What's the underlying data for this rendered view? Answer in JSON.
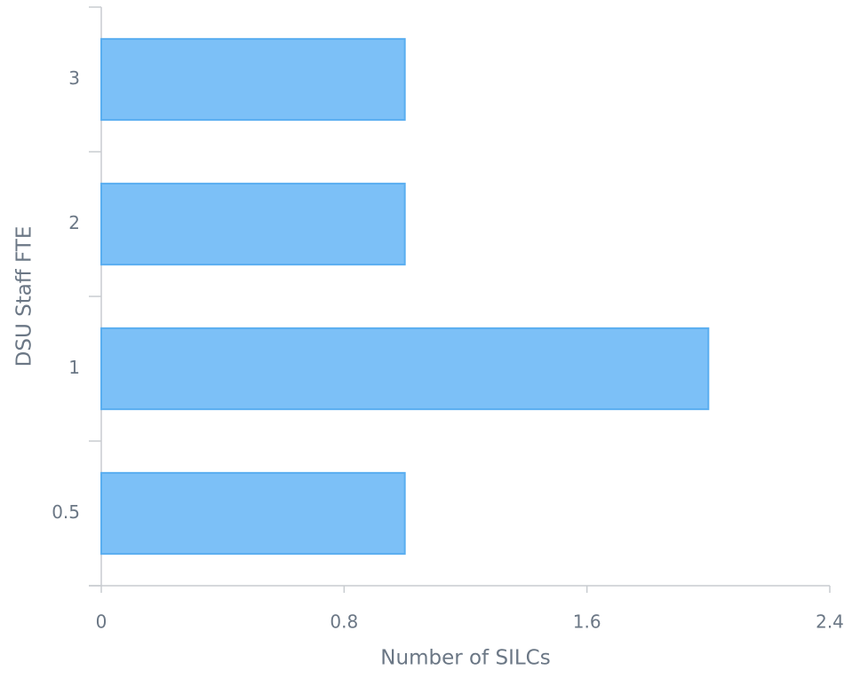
{
  "chart_data": {
    "type": "hbar",
    "xlabel": "Number of SILCs",
    "ylabel": "DSU Staff FTE",
    "categories": [
      "0.5",
      "1",
      "2",
      "3"
    ],
    "values": [
      1,
      2,
      1,
      1
    ],
    "color": "#7cc0f7",
    "xlim": [
      0,
      2.4
    ],
    "xticks": [
      0,
      0.8,
      1.6,
      2.4
    ]
  }
}
